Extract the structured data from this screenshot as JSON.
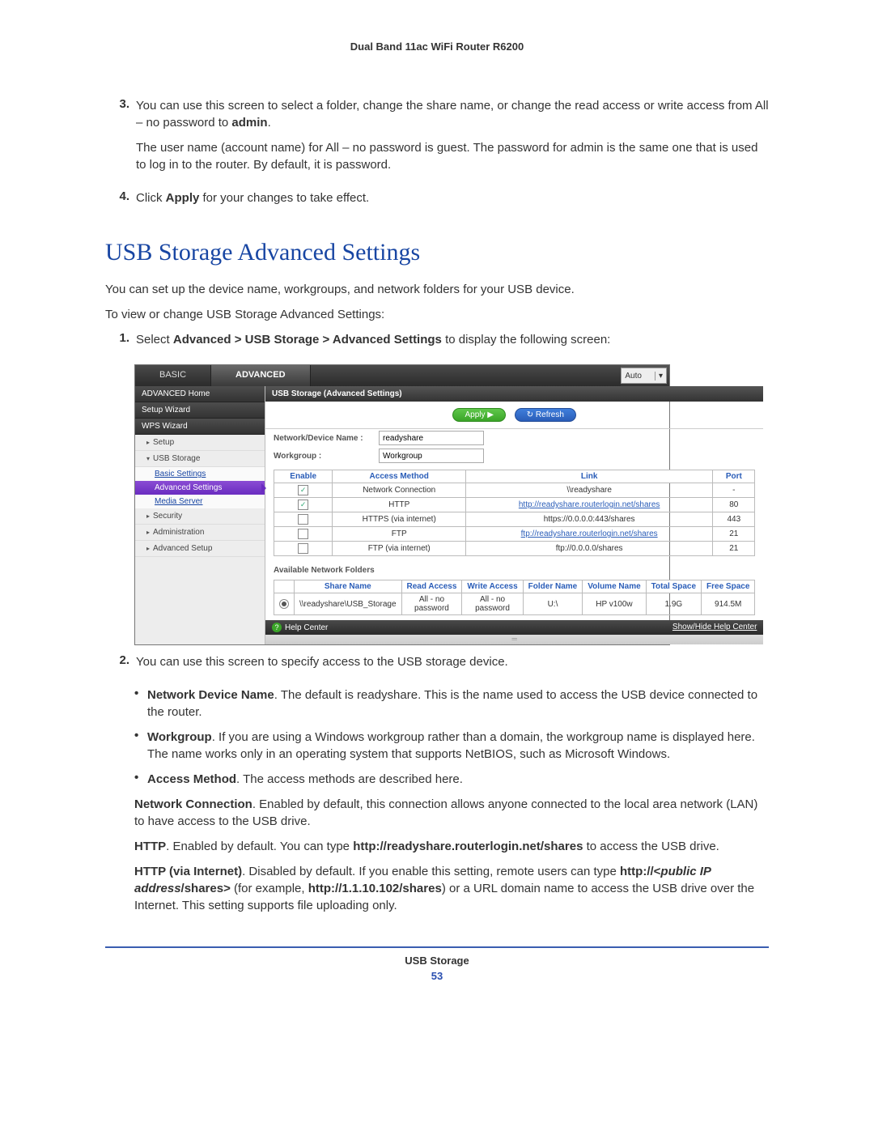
{
  "doc_header": "Dual Band 11ac WiFi Router R6200",
  "intro_items": {
    "item3_num": "3.",
    "item3_line1a": "You can use this screen to select a folder, change the share name, or change the read access or write access from All – no password to ",
    "item3_line1b": "admin",
    "item3_line1c": ".",
    "item3_p2": "The user name (account name) for All – no password is guest. The password for admin is the same one that is used to log in to the router. By default, it is password.",
    "item4_num": "4.",
    "item4_a": "Click ",
    "item4_b": "Apply",
    "item4_c": " for your changes to take effect."
  },
  "section_title": "USB Storage Advanced Settings",
  "p_after_title": "You can set up the device name, workgroups, and network folders for your USB device.",
  "p_toview": "To view or change USB Storage Advanced Settings:",
  "step1": {
    "num": "1.",
    "a": "Select ",
    "b": "Advanced > USB Storage > Advanced Settings",
    "c": " to display the following screen:"
  },
  "shot": {
    "tab_basic": "BASIC",
    "tab_advanced": "ADVANCED",
    "auto_label": "Auto",
    "sidebar": {
      "adv_home": "ADVANCED Home",
      "setup_wizard": "Setup Wizard",
      "wps_wizard": "WPS Wizard",
      "setup": "Setup",
      "usb_storage": "USB Storage",
      "basic_settings": "Basic Settings",
      "advanced_settings": "Advanced Settings",
      "media_server": "Media Server",
      "security": "Security",
      "administration": "Administration",
      "advanced_setup": "Advanced Setup"
    },
    "panel_title": "USB Storage (Advanced Settings)",
    "btn_apply": "Apply ▶",
    "btn_refresh": "↻ Refresh",
    "form": {
      "device_name_label": "Network/Device Name :",
      "device_name_value": "readyshare",
      "workgroup_label": "Workgroup :",
      "workgroup_value": "Workgroup"
    },
    "access_headers": {
      "enable": "Enable",
      "method": "Access Method",
      "link": "Link",
      "port": "Port"
    },
    "access_rows": [
      {
        "checked": true,
        "method": "Network Connection",
        "link": "\\\\readyshare",
        "link_is_url": false,
        "port": "-"
      },
      {
        "checked": true,
        "method": "HTTP",
        "link": "http://readyshare.routerlogin.net/shares",
        "link_is_url": true,
        "port": "80"
      },
      {
        "checked": false,
        "method": "HTTPS (via internet)",
        "link": "https://0.0.0.0:443/shares",
        "link_is_url": false,
        "port": "443"
      },
      {
        "checked": false,
        "method": "FTP",
        "link": "ftp://readyshare.routerlogin.net/shares",
        "link_is_url": true,
        "port": "21"
      },
      {
        "checked": false,
        "method": "FTP (via internet)",
        "link": "ftp://0.0.0.0/shares",
        "link_is_url": false,
        "port": "21"
      }
    ],
    "avail_label": "Available Network Folders",
    "folder_headers": {
      "share": "Share Name",
      "read": "Read Access",
      "write": "Write Access",
      "folder": "Folder Name",
      "volume": "Volume Name",
      "total": "Total Space",
      "free": "Free Space"
    },
    "folder_row": {
      "share": "\\\\readyshare\\USB_Storage",
      "read": "All - no password",
      "write": "All - no password",
      "folder": "U:\\",
      "volume": "HP v100w",
      "total": "1.9G",
      "free": "914.5M"
    },
    "help_left": "Help Center",
    "help_right": "Show/Hide Help Center"
  },
  "step2": {
    "num": "2.",
    "text": "You can use this screen to specify access to the USB storage device."
  },
  "bullets": {
    "ndn_b": "Network Device Name",
    "ndn_t": ". The default is readyshare. This is the name used to access the USB device connected to the router.",
    "wg_b": "Workgroup",
    "wg_t": ". If you are using a Windows workgroup rather than a domain, the workgroup name is displayed here. The name works only in an operating system that supports NetBIOS, such as Microsoft Windows.",
    "am_b": "Access Method",
    "am_t": ". The access methods are described here."
  },
  "subs": {
    "nc_b": "Network Connection",
    "nc_t": ". Enabled by default, this connection allows anyone connected to the local area network (LAN) to have access to the USB drive.",
    "http_b": "HTTP",
    "http_t1": ". Enabled by default. You can type ",
    "http_url": "http://readyshare.routerlogin.net/shares",
    "http_t2": " to access the USB drive.",
    "hvi_b": "HTTP (via Internet)",
    "hvi_t1": ". Disabled by default. If you enable this setting, remote users can type ",
    "hvi_url1a": "http://<",
    "hvi_url1b": "public IP address",
    "hvi_url1c": "/shares>",
    "hvi_t2": " (for example, ",
    "hvi_ex": "http://1.1.10.102/shares",
    "hvi_t3": ") or a URL domain name to access the USB drive over the Internet. This setting supports file uploading only."
  },
  "footer_label": "USB Storage",
  "footer_page": "53"
}
